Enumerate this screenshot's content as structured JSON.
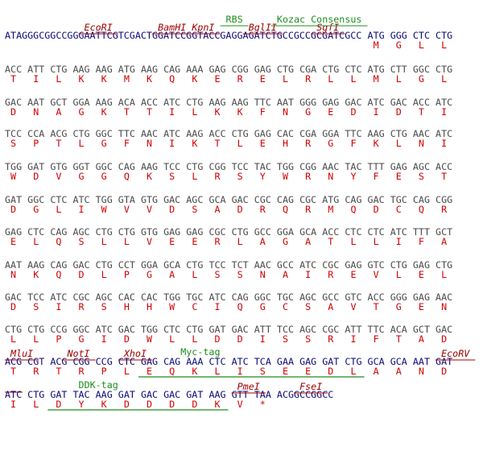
{
  "rows": [
    {
      "leader": "ATAGGGCGGCCGGGAATTCGTCGACTGGATCCGGTACCGAGGAGATCTGCCGCCGCGATCGCC",
      "dna": [
        "ATG",
        "GGG",
        "CTC",
        "CTG"
      ],
      "protein": [
        "M",
        "G",
        "L",
        "L"
      ],
      "enzymes": [
        "EcoRI",
        "BamHI",
        "KpnI",
        "BglII",
        "SgfI"
      ],
      "elements": [
        "RBS",
        "Kozac Consensus"
      ]
    },
    {
      "dna": [
        "ACC",
        "ATT",
        "CTG",
        "AAG",
        "AAG",
        "ATG",
        "AAG",
        "CAG",
        "AAA",
        "GAG",
        "CGG",
        "GAG",
        "CTG",
        "CGA",
        "CTG",
        "CTC",
        "ATG",
        "CTT",
        "GGC",
        "CTG"
      ],
      "protein": [
        "T",
        "I",
        "L",
        "K",
        "K",
        "M",
        "K",
        "Q",
        "K",
        "E",
        "R",
        "E",
        "L",
        "R",
        "L",
        "L",
        "M",
        "L",
        "G",
        "L"
      ]
    },
    {
      "dna": [
        "GAC",
        "AAT",
        "GCT",
        "GGA",
        "AAG",
        "ACA",
        "ACC",
        "ATC",
        "CTG",
        "AAG",
        "AAG",
        "TTC",
        "AAT",
        "GGG",
        "GAG",
        "GAC",
        "ATC",
        "GAC",
        "ACC",
        "ATC"
      ],
      "protein": [
        "D",
        "N",
        "A",
        "G",
        "K",
        "T",
        "T",
        "I",
        "L",
        "K",
        "K",
        "F",
        "N",
        "G",
        "E",
        "D",
        "I",
        "D",
        "T",
        "I"
      ]
    },
    {
      "dna": [
        "TCC",
        "CCA",
        "ACG",
        "CTG",
        "GGC",
        "TTC",
        "AAC",
        "ATC",
        "AAG",
        "ACC",
        "CTG",
        "GAG",
        "CAC",
        "CGA",
        "GGA",
        "TTC",
        "AAG",
        "CTG",
        "AAC",
        "ATC"
      ],
      "protein": [
        "S",
        "P",
        "T",
        "L",
        "G",
        "F",
        "N",
        "I",
        "K",
        "T",
        "L",
        "E",
        "H",
        "R",
        "G",
        "F",
        "K",
        "L",
        "N",
        "I"
      ]
    },
    {
      "dna": [
        "TGG",
        "GAT",
        "GTG",
        "GGT",
        "GGC",
        "CAG",
        "AAG",
        "TCC",
        "CTG",
        "CGG",
        "TCC",
        "TAC",
        "TGG",
        "CGG",
        "AAC",
        "TAC",
        "TTT",
        "GAG",
        "AGC",
        "ACC"
      ],
      "protein": [
        "W",
        "D",
        "V",
        "G",
        "G",
        "Q",
        "K",
        "S",
        "L",
        "R",
        "S",
        "Y",
        "W",
        "R",
        "N",
        "Y",
        "F",
        "E",
        "S",
        "T"
      ]
    },
    {
      "dna": [
        "GAT",
        "GGC",
        "CTC",
        "ATC",
        "TGG",
        "GTA",
        "GTG",
        "GAC",
        "AGC",
        "GCA",
        "GAC",
        "CGC",
        "CAG",
        "CGC",
        "ATG",
        "CAG",
        "GAC",
        "TGC",
        "CAG",
        "CGG"
      ],
      "protein": [
        "D",
        "G",
        "L",
        "I",
        "W",
        "V",
        "V",
        "D",
        "S",
        "A",
        "D",
        "R",
        "Q",
        "R",
        "M",
        "Q",
        "D",
        "C",
        "Q",
        "R"
      ]
    },
    {
      "dna": [
        "GAG",
        "CTC",
        "CAG",
        "AGC",
        "CTG",
        "CTG",
        "GTG",
        "GAG",
        "GAG",
        "CGC",
        "CTG",
        "GCC",
        "GGA",
        "GCA",
        "ACC",
        "CTC",
        "CTC",
        "ATC",
        "TTT",
        "GCT"
      ],
      "protein": [
        "E",
        "L",
        "Q",
        "S",
        "L",
        "L",
        "V",
        "E",
        "E",
        "R",
        "L",
        "A",
        "G",
        "A",
        "T",
        "L",
        "L",
        "I",
        "F",
        "A"
      ]
    },
    {
      "dna": [
        "AAT",
        "AAG",
        "CAG",
        "GAC",
        "CTG",
        "CCT",
        "GGA",
        "GCA",
        "CTG",
        "TCC",
        "TCT",
        "AAC",
        "GCC",
        "ATC",
        "CGC",
        "GAG",
        "GTC",
        "CTG",
        "GAG",
        "CTG"
      ],
      "protein": [
        "N",
        "K",
        "Q",
        "D",
        "L",
        "P",
        "G",
        "A",
        "L",
        "S",
        "S",
        "N",
        "A",
        "I",
        "R",
        "E",
        "V",
        "L",
        "E",
        "L"
      ]
    },
    {
      "dna": [
        "GAC",
        "TCC",
        "ATC",
        "CGC",
        "AGC",
        "CAC",
        "CAC",
        "TGG",
        "TGC",
        "ATC",
        "CAG",
        "GGC",
        "TGC",
        "AGC",
        "GCC",
        "GTC",
        "ACC",
        "GGG",
        "GAG",
        "AAC"
      ],
      "protein": [
        "D",
        "S",
        "I",
        "R",
        "S",
        "H",
        "H",
        "W",
        "C",
        "I",
        "Q",
        "G",
        "C",
        "S",
        "A",
        "V",
        "T",
        "G",
        "E",
        "N"
      ]
    },
    {
      "dna": [
        "CTG",
        "CTG",
        "CCG",
        "GGC",
        "ATC",
        "GAC",
        "TGG",
        "CTC",
        "CTG",
        "GAT",
        "GAC",
        "ATT",
        "TCC",
        "AGC",
        "CGC",
        "ATT",
        "TTC",
        "ACA",
        "GCT",
        "GAC"
      ],
      "protein": [
        "L",
        "L",
        "P",
        "G",
        "I",
        "D",
        "W",
        "L",
        "L",
        "D",
        "D",
        "I",
        "S",
        "S",
        "R",
        "I",
        "F",
        "T",
        "A",
        "D"
      ]
    },
    {
      "dna": [
        "ACG",
        "CGT",
        "ACG",
        "CGG",
        "CCG",
        "CTC",
        "GAG",
        "CAG",
        "AAA",
        "CTC",
        "ATC",
        "TCA",
        "GAA",
        "GAG",
        "GAT",
        "CTG",
        "GCA",
        "GCA",
        "AAT",
        "GAT"
      ],
      "protein": [
        "T",
        "R",
        "T",
        "R",
        "P",
        "L",
        "E",
        "Q",
        "K",
        "L",
        "I",
        "S",
        "E",
        "E",
        "D",
        "L",
        "A",
        "A",
        "N",
        "D"
      ],
      "enzymes": [
        "MluI",
        "NotI",
        "XhoI",
        "EcoRV"
      ],
      "elements": [
        "Myc-tag"
      ]
    },
    {
      "dna": [
        "ATC",
        "CTG",
        "GAT",
        "TAC",
        "AAG",
        "GAT",
        "GAC",
        "GAC",
        "GAT",
        "AAG",
        "GTT",
        "TAA"
      ],
      "protein": [
        "I",
        "L",
        "D",
        "Y",
        "K",
        "D",
        "D",
        "D",
        "D",
        "K",
        "V",
        "*"
      ],
      "trailer": "ACGGCCGGCC",
      "enzymes": [
        "PmeI",
        "FseI"
      ],
      "elements": [
        "DDK-tag"
      ]
    }
  ]
}
